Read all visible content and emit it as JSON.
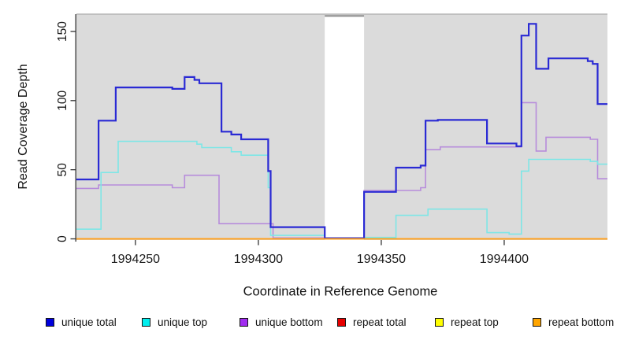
{
  "chart_data": {
    "type": "step-line",
    "title": "",
    "xlabel": "Coordinate in Reference Genome",
    "ylabel": "Read Coverage Depth",
    "xlim": [
      1994226,
      1994442
    ],
    "ylim": [
      0,
      162.5
    ],
    "x_ticks": [
      1994250,
      1994300,
      1994350,
      1994400
    ],
    "x_tick_labels": [
      "1994250",
      "1994300",
      "1994350",
      "1994400"
    ],
    "y_ticks": [
      0,
      50,
      100,
      150
    ],
    "y_tick_labels": [
      "0",
      "50",
      "100",
      "150"
    ],
    "grid": "off",
    "panel_bg": "#dbdbdb",
    "panel_border_color": "#b4b4b4",
    "axis_line_color": "#3f3f3f",
    "masked_region": {
      "x_start": 1994327,
      "x_end": 1994343,
      "color": "#ffffff",
      "top_edge_color": "#8c8c8c"
    },
    "series": [
      {
        "name": "unique total",
        "color": "#2a2ad4",
        "width": 2.2,
        "points": [
          [
            1994226,
            43
          ],
          [
            1994235,
            85.5
          ],
          [
            1994242,
            109.5
          ],
          [
            1994265,
            108.5
          ],
          [
            1994270,
            117
          ],
          [
            1994274,
            115
          ],
          [
            1994276,
            112.5
          ],
          [
            1994285,
            77.5
          ],
          [
            1994289,
            75.5
          ],
          [
            1994293,
            72
          ],
          [
            1994304,
            49
          ],
          [
            1994305,
            8.5
          ],
          [
            1994327,
            0.5
          ],
          [
            1994343,
            34
          ],
          [
            1994356,
            51.5
          ],
          [
            1994366,
            53
          ],
          [
            1994368,
            85.5
          ],
          [
            1994373,
            86
          ],
          [
            1994393,
            69
          ],
          [
            1994405,
            67
          ],
          [
            1994407,
            147
          ],
          [
            1994410,
            155.5
          ],
          [
            1994413,
            123
          ],
          [
            1994418,
            130.5
          ],
          [
            1994434,
            128.5
          ],
          [
            1994436,
            126.5
          ],
          [
            1994438,
            97.5
          ]
        ]
      },
      {
        "name": "unique top",
        "color": "#7ee6e6",
        "width": 1.6,
        "points": [
          [
            1994226,
            7
          ],
          [
            1994236,
            48
          ],
          [
            1994243,
            70.5
          ],
          [
            1994275,
            68.5
          ],
          [
            1994277,
            66
          ],
          [
            1994289,
            63
          ],
          [
            1994293,
            60.5
          ],
          [
            1994304,
            37
          ],
          [
            1994305,
            2.5
          ],
          [
            1994327,
            0.5
          ],
          [
            1994343,
            1
          ],
          [
            1994356,
            17
          ],
          [
            1994369,
            21.5
          ],
          [
            1994393,
            4.5
          ],
          [
            1994402,
            3.5
          ],
          [
            1994407,
            49
          ],
          [
            1994410,
            57.5
          ],
          [
            1994435,
            56
          ],
          [
            1994438,
            54
          ]
        ]
      },
      {
        "name": "unique bottom",
        "color": "#b78cdb",
        "width": 1.6,
        "points": [
          [
            1994226,
            36.5
          ],
          [
            1994235,
            39
          ],
          [
            1994265,
            37
          ],
          [
            1994270,
            46
          ],
          [
            1994284,
            11
          ],
          [
            1994306,
            0.7
          ],
          [
            1994343,
            35
          ],
          [
            1994366,
            37
          ],
          [
            1994368,
            64.5
          ],
          [
            1994374,
            66.5
          ],
          [
            1994407,
            98.5
          ],
          [
            1994413,
            63.5
          ],
          [
            1994417,
            73.5
          ],
          [
            1994435,
            72
          ],
          [
            1994438,
            43.5
          ]
        ]
      },
      {
        "name": "repeat total",
        "color": "#dd2222",
        "width": 1.6,
        "points": [
          [
            1994226,
            0
          ]
        ]
      },
      {
        "name": "repeat top",
        "color": "#f0f030",
        "width": 1.6,
        "points": [
          [
            1994226,
            0
          ]
        ]
      },
      {
        "name": "repeat bottom",
        "color": "#ffa01e",
        "width": 2,
        "points": [
          [
            1994226,
            0
          ]
        ]
      }
    ],
    "legend": [
      {
        "label": "unique total",
        "color": "#0000dd"
      },
      {
        "label": "unique top",
        "color": "#00eeee"
      },
      {
        "label": "unique bottom",
        "color": "#a12cf0"
      },
      {
        "label": "repeat total",
        "color": "#e60000"
      },
      {
        "label": "repeat top",
        "color": "#ffff00"
      },
      {
        "label": "repeat bottom",
        "color": "#ffa500"
      }
    ],
    "legend_position": "bottom"
  }
}
